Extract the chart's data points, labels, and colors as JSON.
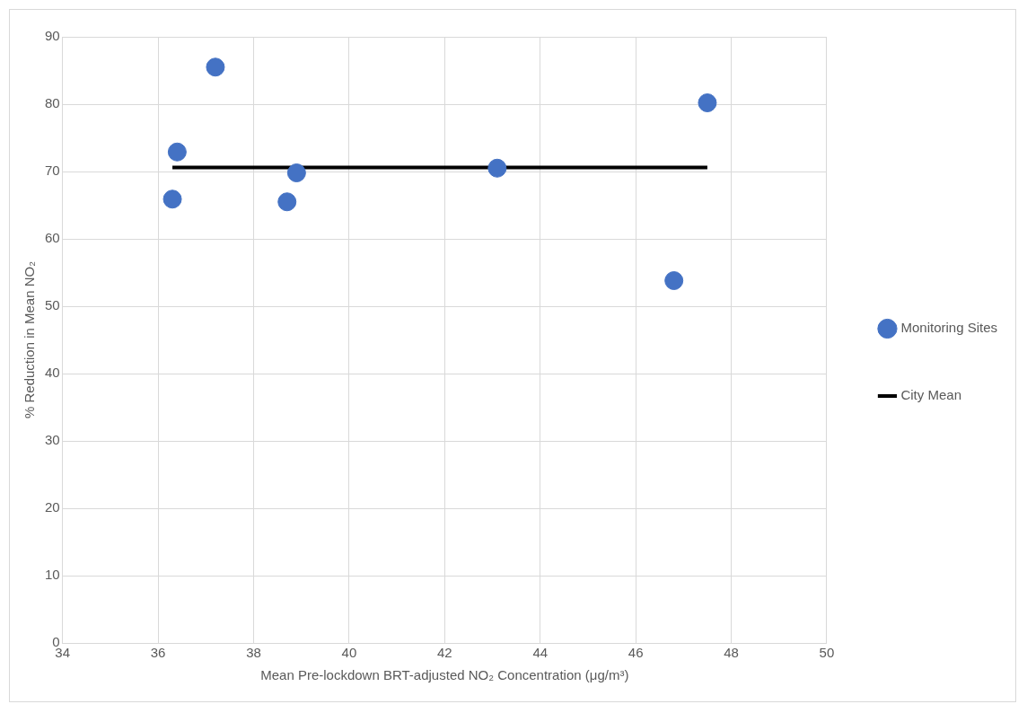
{
  "chart_data": {
    "type": "scatter",
    "xlabel": "Mean Pre-lockdown BRT-adjusted NO₂ Concentration (μg/m³)",
    "ylabel": "% Reduction in Mean NO₂",
    "xlim": [
      34,
      50
    ],
    "xticks": [
      34,
      36,
      38,
      40,
      42,
      44,
      46,
      48,
      50
    ],
    "ylim": [
      0,
      90
    ],
    "yticks": [
      0,
      10,
      20,
      30,
      40,
      50,
      60,
      70,
      80,
      90
    ],
    "grid": true,
    "legend": "right",
    "series": [
      {
        "name": "Monitoring Sites",
        "marker": "circle",
        "color": "#4472c4",
        "x": [
          37.2,
          36.4,
          36.3,
          38.9,
          38.7,
          43.1,
          47.5,
          46.8
        ],
        "values": [
          85.5,
          72.9,
          65.9,
          69.8,
          65.5,
          70.5,
          80.2,
          53.8
        ]
      },
      {
        "name": "City Mean",
        "type": "line",
        "marker": "none",
        "color": "#000000",
        "line_style": "solid",
        "x": [
          36.3,
          47.5
        ],
        "values": [
          70.6,
          70.6
        ]
      }
    ]
  }
}
